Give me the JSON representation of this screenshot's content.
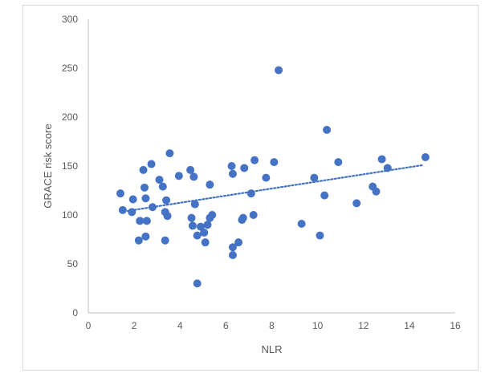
{
  "chart_data": {
    "type": "scatter",
    "xlabel": "NLR",
    "ylabel": "GRACE risk score",
    "xlim": [
      0,
      16
    ],
    "ylim": [
      0,
      300
    ],
    "xticks": [
      "0",
      "2",
      "4",
      "6",
      "8",
      "10",
      "12",
      "14",
      "16"
    ],
    "yticks": [
      "0",
      "50",
      "100",
      "150",
      "200",
      "250",
      "300"
    ],
    "grid": false,
    "marker_color": "#4472c4",
    "trendline": {
      "type": "linear",
      "style": "dotted",
      "color": "#4472c4",
      "x_start": 1.4,
      "y_start": 103,
      "x_end": 14.6,
      "y_end": 151
    },
    "series": [
      {
        "points": [
          [
            1.4,
            122
          ],
          [
            1.5,
            105
          ],
          [
            1.9,
            103
          ],
          [
            1.95,
            116
          ],
          [
            2.2,
            74
          ],
          [
            2.25,
            94
          ],
          [
            2.4,
            146
          ],
          [
            2.45,
            128
          ],
          [
            2.5,
            78
          ],
          [
            2.5,
            117
          ],
          [
            2.55,
            94
          ],
          [
            2.75,
            152
          ],
          [
            2.8,
            108
          ],
          [
            3.1,
            136
          ],
          [
            3.25,
            129
          ],
          [
            3.35,
            74
          ],
          [
            3.35,
            103
          ],
          [
            3.4,
            115
          ],
          [
            3.45,
            99
          ],
          [
            3.55,
            163
          ],
          [
            3.95,
            140
          ],
          [
            4.45,
            146
          ],
          [
            4.5,
            97
          ],
          [
            4.55,
            89
          ],
          [
            4.6,
            139
          ],
          [
            4.65,
            111
          ],
          [
            4.75,
            30
          ],
          [
            4.75,
            79
          ],
          [
            4.9,
            88
          ],
          [
            5.05,
            82
          ],
          [
            5.1,
            72
          ],
          [
            5.2,
            90
          ],
          [
            5.3,
            131
          ],
          [
            5.3,
            97
          ],
          [
            5.4,
            100
          ],
          [
            6.25,
            150
          ],
          [
            6.3,
            142
          ],
          [
            6.3,
            67
          ],
          [
            6.3,
            59
          ],
          [
            6.55,
            72
          ],
          [
            6.7,
            95
          ],
          [
            6.75,
            97
          ],
          [
            6.8,
            148
          ],
          [
            7.1,
            122
          ],
          [
            7.2,
            100
          ],
          [
            7.25,
            156
          ],
          [
            7.75,
            138
          ],
          [
            8.1,
            154
          ],
          [
            8.3,
            248
          ],
          [
            9.3,
            91
          ],
          [
            9.85,
            138
          ],
          [
            10.1,
            79
          ],
          [
            10.3,
            120
          ],
          [
            10.4,
            187
          ],
          [
            10.9,
            154
          ],
          [
            11.7,
            112
          ],
          [
            12.4,
            129
          ],
          [
            12.55,
            124
          ],
          [
            12.8,
            157
          ],
          [
            13.05,
            148
          ],
          [
            14.7,
            159
          ]
        ]
      }
    ]
  }
}
